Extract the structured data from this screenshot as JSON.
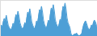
{
  "chart_data": {
    "type": "area",
    "values": [
      10,
      14,
      11,
      18,
      22,
      18,
      26,
      20,
      14,
      11,
      9,
      8,
      11,
      16,
      13,
      21,
      27,
      23,
      31,
      25,
      17,
      13,
      10,
      9,
      12,
      17,
      14,
      23,
      30,
      26,
      34,
      27,
      18,
      14,
      11,
      9,
      13,
      19,
      16,
      25,
      33,
      29,
      37,
      30,
      20,
      15,
      12,
      10,
      14,
      20,
      17,
      27,
      35,
      31,
      39,
      32,
      21,
      16,
      13,
      11,
      15,
      21,
      18,
      29,
      37,
      33,
      41,
      34,
      23,
      17,
      14,
      11,
      4,
      1,
      1,
      2,
      3,
      3,
      4,
      2,
      1,
      1,
      2,
      3,
      9,
      14,
      17,
      19,
      16,
      12,
      9,
      8,
      10,
      14,
      12,
      17,
      20,
      18,
      14,
      11
    ],
    "color": "#4d9fd6",
    "xlim": [
      0,
      99
    ],
    "ylim": [
      0,
      44.28
    ],
    "tick_labels": false,
    "grid": false
  }
}
